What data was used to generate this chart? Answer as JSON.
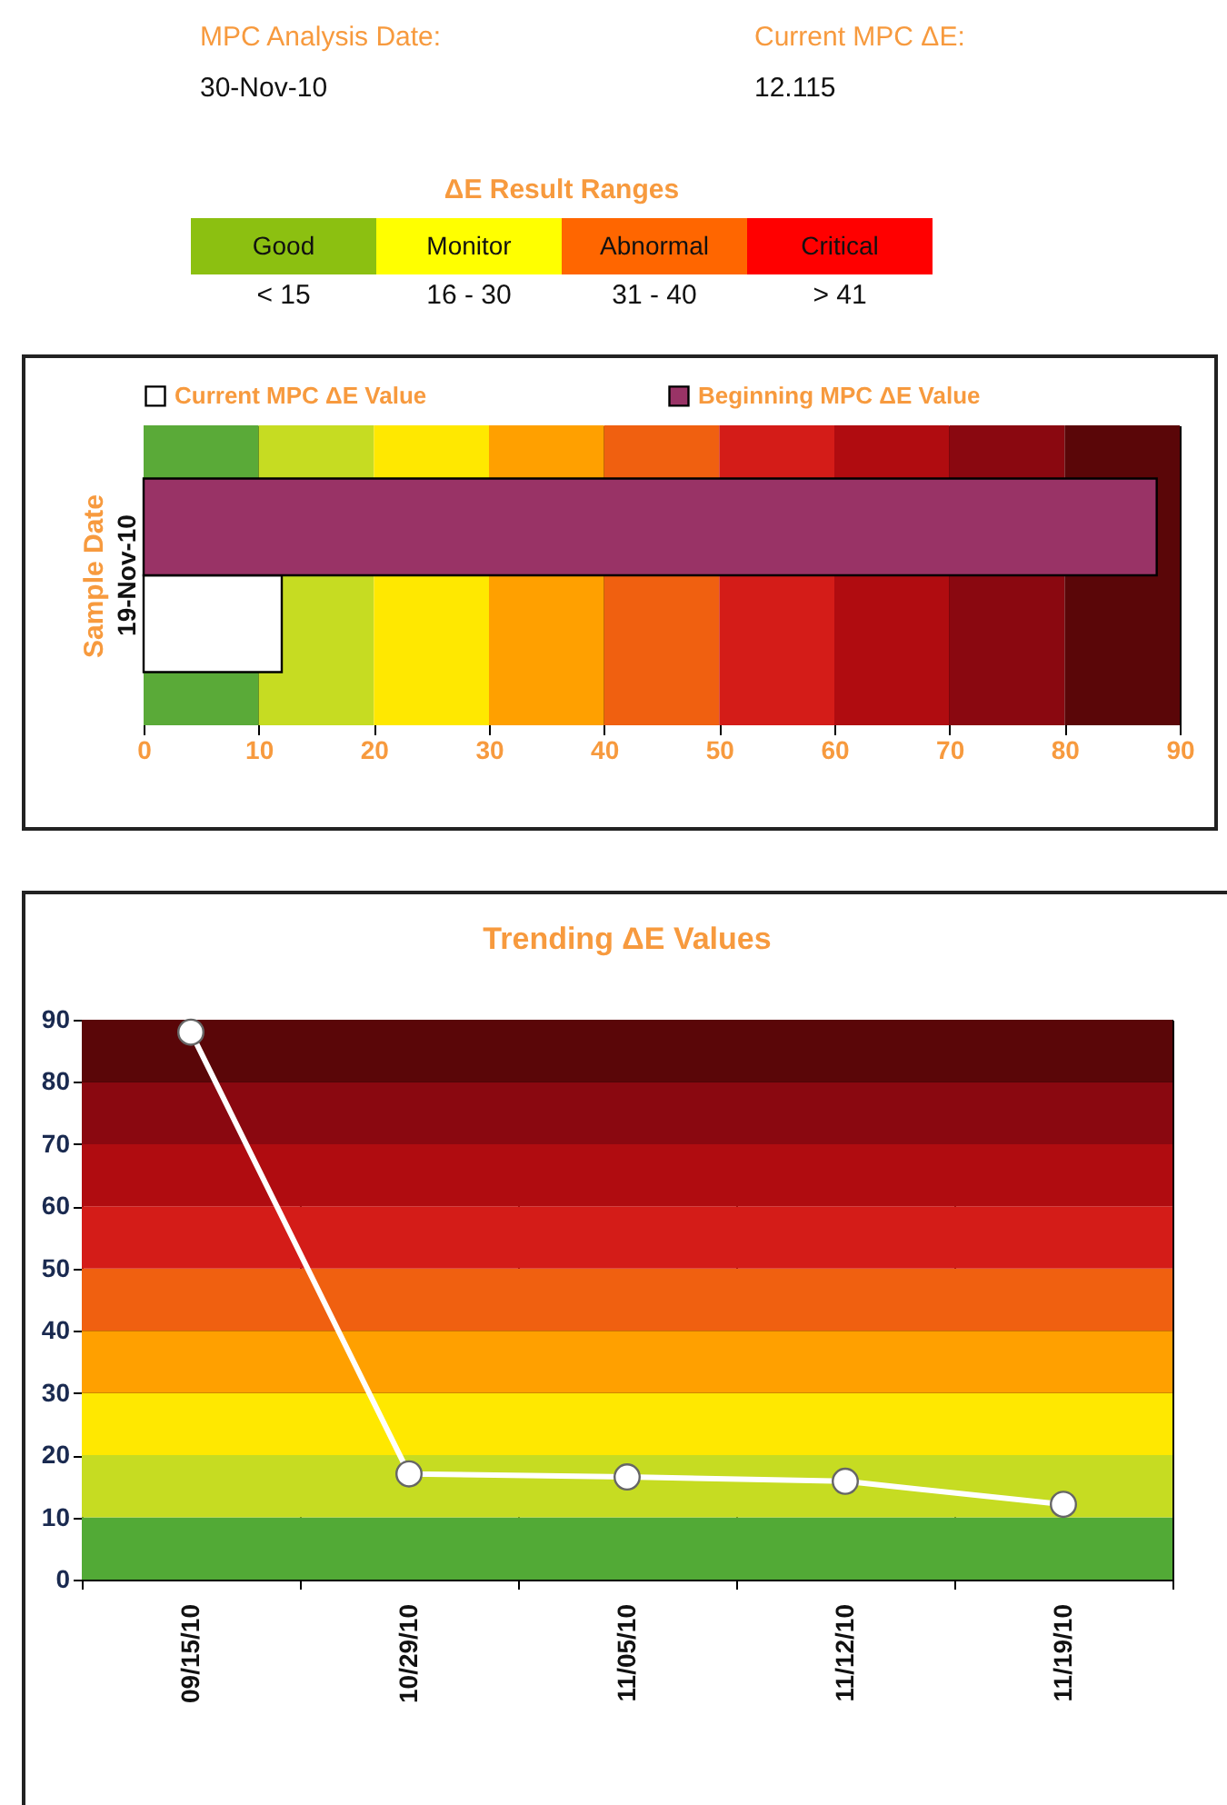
{
  "chart_data": [
    {
      "type": "other",
      "title": "ΔE Result Ranges",
      "categories": [
        "Good",
        "Monitor",
        "Abnormal",
        "Critical"
      ],
      "colors": [
        "#8cc011",
        "#ffff00",
        "#ff6600",
        "#ff0000"
      ],
      "annotations": [
        "MPC Analysis Date:",
        "30-Nov-10",
        "Current MPC ΔE:",
        "12.115",
        "< 15",
        "16 - 30",
        "31 - 40",
        "> 41"
      ]
    },
    {
      "type": "bar",
      "orientation": "horizontal",
      "categories": [
        "19-Nov-10"
      ],
      "ylabel": "Sample Date",
      "series": [
        {
          "name": "Current MPC ΔE Value",
          "color": "#ffffff",
          "values": [
            12
          ]
        },
        {
          "name": "Beginning MPC ΔE Value",
          "color": "#993366",
          "values": [
            88
          ]
        }
      ],
      "xlim": [
        0,
        90
      ],
      "xticks": [
        0,
        10,
        20,
        30,
        40,
        50,
        60,
        70,
        80,
        90
      ],
      "grid": "x",
      "legend": "top",
      "bands": [
        {
          "axis": "x",
          "from": 0,
          "to": 10,
          "color": "#5aaa38"
        },
        {
          "axis": "x",
          "from": 10,
          "to": 20,
          "color": "#c6dc22"
        },
        {
          "axis": "x",
          "from": 20,
          "to": 30,
          "color": "#ffe800"
        },
        {
          "axis": "x",
          "from": 30,
          "to": 40,
          "color": "#ffa000"
        },
        {
          "axis": "x",
          "from": 40,
          "to": 50,
          "color": "#f06010"
        },
        {
          "axis": "x",
          "from": 50,
          "to": 60,
          "color": "#d41c18"
        },
        {
          "axis": "x",
          "from": 60,
          "to": 70,
          "color": "#b00c10"
        },
        {
          "axis": "x",
          "from": 70,
          "to": 80,
          "color": "#8a0810"
        },
        {
          "axis": "x",
          "from": 80,
          "to": 90,
          "color": "#5a0608"
        }
      ]
    },
    {
      "type": "line",
      "title": "Trending ΔE Values",
      "categories": [
        "09/15/10",
        "10/29/10",
        "11/05/10",
        "11/12/10",
        "11/19/10"
      ],
      "series": [
        {
          "color": "#ffffff",
          "values": [
            88,
            17,
            16.5,
            15.8,
            12.1
          ]
        }
      ],
      "ylim": [
        0,
        90
      ],
      "yticks": [
        0,
        10,
        20,
        30,
        40,
        50,
        60,
        70,
        80,
        90
      ],
      "grid": true,
      "marker": "circle",
      "bands": [
        {
          "axis": "y",
          "from": 0,
          "to": 10,
          "color": "#52aa36"
        },
        {
          "axis": "y",
          "from": 10,
          "to": 20,
          "color": "#c6dc22"
        },
        {
          "axis": "y",
          "from": 20,
          "to": 30,
          "color": "#ffe800"
        },
        {
          "axis": "y",
          "from": 30,
          "to": 40,
          "color": "#ffa000"
        },
        {
          "axis": "y",
          "from": 40,
          "to": 50,
          "color": "#f06010"
        },
        {
          "axis": "y",
          "from": 50,
          "to": 60,
          "color": "#d41c18"
        },
        {
          "axis": "y",
          "from": 60,
          "to": 70,
          "color": "#b00c10"
        },
        {
          "axis": "y",
          "from": 70,
          "to": 80,
          "color": "#8a0810"
        },
        {
          "axis": "y",
          "from": 80,
          "to": 90,
          "color": "#5a0608"
        }
      ]
    }
  ]
}
